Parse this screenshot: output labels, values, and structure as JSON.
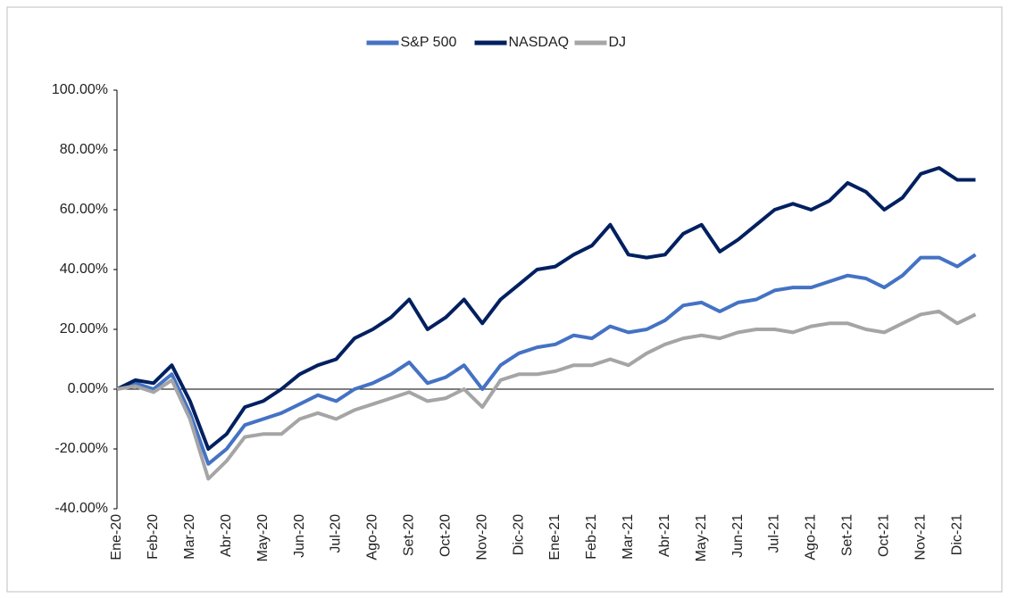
{
  "chart_data": {
    "type": "line",
    "categories": [
      "Ene-20",
      null,
      "Feb-20",
      null,
      "Mar-20",
      null,
      "Abr-20",
      null,
      "May-20",
      null,
      "Jun-20",
      null,
      "Jul-20",
      null,
      "Ago-20",
      null,
      "Set-20",
      null,
      "Oct-20",
      null,
      "Nov-20",
      null,
      "Dic-20",
      null,
      "Ene-21",
      null,
      "Feb-21",
      null,
      "Mar-21",
      null,
      "Abr-21",
      null,
      "May-21",
      null,
      "Jun-21",
      null,
      "Jul-21",
      null,
      "Ago-21",
      null,
      "Set-21",
      null,
      "Oct-21",
      null,
      "Nov-21",
      null,
      "Dic-21",
      null
    ],
    "series": [
      {
        "name": "S&P 500",
        "color": "#4472c4",
        "values": [
          0,
          2,
          0,
          5,
          -8,
          -25,
          -20,
          -12,
          -10,
          -8,
          -5,
          -2,
          -4,
          0,
          2,
          5,
          9,
          2,
          4,
          8,
          0,
          8,
          12,
          14,
          15,
          18,
          17,
          21,
          19,
          20,
          23,
          28,
          29,
          26,
          29,
          30,
          33,
          34,
          34,
          36,
          38,
          37,
          34,
          38,
          44,
          44,
          41,
          45
        ]
      },
      {
        "name": "NASDAQ",
        "color": "#002060",
        "values": [
          0,
          3,
          2,
          8,
          -4,
          -20,
          -15,
          -6,
          -4,
          0,
          5,
          8,
          10,
          17,
          20,
          24,
          30,
          20,
          24,
          30,
          22,
          30,
          35,
          40,
          41,
          45,
          48,
          55,
          45,
          44,
          45,
          52,
          55,
          46,
          50,
          55,
          60,
          62,
          60,
          63,
          69,
          66,
          60,
          64,
          72,
          74,
          70,
          70
        ]
      },
      {
        "name": "DJ",
        "color": "#a5a5a5",
        "values": [
          0,
          1,
          -1,
          3,
          -10,
          -30,
          -24,
          -16,
          -15,
          -15,
          -10,
          -8,
          -10,
          -7,
          -5,
          -3,
          -1,
          -4,
          -3,
          0,
          -6,
          3,
          5,
          5,
          6,
          8,
          8,
          10,
          8,
          12,
          15,
          17,
          18,
          17,
          19,
          20,
          20,
          19,
          21,
          22,
          22,
          20,
          19,
          22,
          25,
          26,
          22,
          25
        ]
      }
    ],
    "ylim": [
      -40,
      100
    ],
    "yticks": [
      {
        "value": -40,
        "label": "-40.00%"
      },
      {
        "value": -20,
        "label": "-20.00%"
      },
      {
        "value": 0,
        "label": "0.00%"
      },
      {
        "value": 20,
        "label": "20.00%"
      },
      {
        "value": 40,
        "label": "40.00%"
      },
      {
        "value": 60,
        "label": "60.00%"
      },
      {
        "value": 80,
        "label": "80.00%"
      },
      {
        "value": 100,
        "label": "100.00%"
      }
    ],
    "legend": "top"
  }
}
